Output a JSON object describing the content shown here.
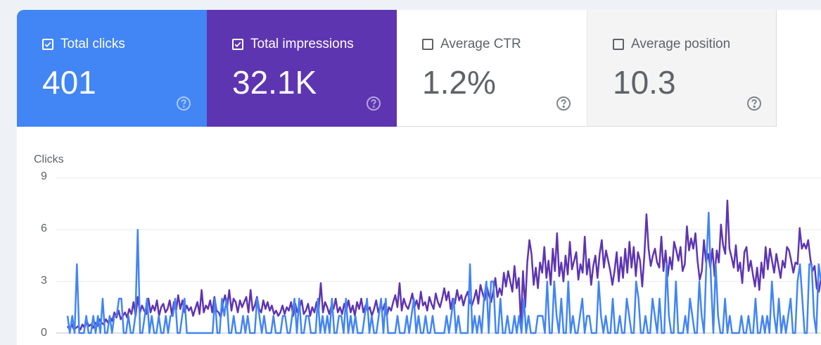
{
  "metrics": [
    {
      "label": "Total clicks",
      "value": "401",
      "checked": true,
      "color": "#4285f4"
    },
    {
      "label": "Total impressions",
      "value": "32.1K",
      "checked": true,
      "color": "#5e35b1"
    },
    {
      "label": "Average CTR",
      "value": "1.2%",
      "checked": false
    },
    {
      "label": "Average position",
      "value": "10.3",
      "checked": false
    }
  ],
  "chart_data": {
    "type": "line",
    "ylabel": "Clicks",
    "yticks": [
      "9",
      "6",
      "3",
      "0"
    ],
    "ylim": [
      0,
      9
    ],
    "grid": true,
    "series": [
      {
        "color": "#4285f4",
        "values": [
          1,
          0,
          1,
          0,
          4,
          0,
          0,
          0,
          1,
          0,
          0,
          1,
          0,
          1,
          0,
          2,
          0,
          0,
          1,
          0,
          1,
          1,
          2,
          2,
          0,
          0,
          1,
          0,
          0,
          1,
          6,
          0,
          0,
          1,
          2,
          0,
          1,
          0,
          0,
          1,
          0,
          0,
          1,
          0,
          1,
          1,
          2,
          0,
          0,
          1,
          2,
          0,
          0,
          0,
          0,
          0,
          0,
          0,
          0,
          0,
          0,
          0,
          0,
          2,
          0,
          0,
          2,
          1,
          2,
          0,
          0,
          1,
          0,
          0,
          0,
          1,
          0,
          1,
          0,
          0,
          0,
          2,
          1,
          0,
          1,
          0,
          0,
          0,
          1,
          0,
          0,
          0,
          1,
          1,
          0,
          0,
          1,
          2,
          0,
          2,
          0,
          0,
          1,
          1,
          0,
          0,
          0,
          2,
          0,
          1,
          0,
          1,
          0,
          2,
          0,
          0,
          1,
          1,
          0,
          2,
          0,
          1,
          0,
          1,
          0,
          0,
          0,
          1,
          2,
          0,
          1,
          0,
          0,
          1,
          2,
          0,
          2,
          0,
          0,
          0,
          0,
          1,
          0,
          0,
          0,
          1,
          0,
          1,
          2,
          0,
          1,
          0,
          0,
          1,
          0,
          0,
          1,
          0,
          0,
          0,
          0,
          0,
          1,
          0,
          1,
          2,
          0,
          1,
          0,
          0,
          0,
          0,
          4,
          0,
          1,
          0,
          1,
          0,
          2,
          3,
          0,
          3,
          3,
          0,
          0,
          2,
          0,
          0,
          1,
          0,
          0,
          1,
          0,
          1,
          0,
          2,
          0,
          1,
          0,
          0,
          0,
          1,
          1,
          1,
          0,
          3,
          0,
          0,
          3,
          1,
          0,
          2,
          0,
          0,
          3,
          0,
          1,
          0,
          0,
          1,
          2,
          0,
          1,
          1,
          0,
          0,
          0,
          3,
          1,
          0,
          1,
          0,
          0,
          2,
          0,
          0,
          1,
          0,
          0,
          2,
          1,
          0,
          0,
          3,
          2,
          0,
          0,
          1,
          0,
          0,
          2,
          1,
          0,
          2,
          0,
          0,
          4,
          1,
          0,
          0,
          3,
          0,
          0,
          0,
          1,
          0,
          2,
          1,
          0,
          0,
          3,
          1,
          0,
          4,
          7,
          3,
          0,
          4,
          1,
          0,
          0,
          2,
          0,
          1,
          0,
          0,
          0,
          0,
          1,
          0,
          0,
          1,
          0,
          0,
          2,
          0,
          0,
          1,
          0,
          1,
          0,
          3,
          1,
          0,
          2,
          0,
          1,
          0,
          1,
          2,
          0,
          0,
          3,
          4,
          2,
          0,
          0,
          4,
          4,
          1,
          0,
          4,
          3
        ],
        "stroke": 2.5
      },
      {
        "color": "#5e35b1",
        "values": [
          0.4,
          0.2,
          0.5,
          0.2,
          0.3,
          0.4,
          0.2,
          0.5,
          0.3,
          0.7,
          0.4,
          0.5,
          0.3,
          0.6,
          0.4,
          0.8,
          0.6,
          0.5,
          0.8,
          0.6,
          0.9,
          0.7,
          1.2,
          0.9,
          1.3,
          0.8,
          1.0,
          1.2,
          0.9,
          1.4,
          1.1,
          1.8,
          1.0,
          2.1,
          1.2,
          1.6,
          1.3,
          1.1,
          2.0,
          1.2,
          1.6,
          1.3,
          1.9,
          1.0,
          1.5,
          1.7,
          1.2,
          1.4,
          1.9,
          1.1,
          1.8,
          1.3,
          2.2,
          1.4,
          1.9,
          1.2,
          1.6,
          1.3,
          1.5,
          1.0,
          1.4,
          1.8,
          1.1,
          2.5,
          1.2,
          1.6,
          1.4,
          1.9,
          1.2,
          2.1,
          1.3,
          1.2,
          0.9,
          1.7,
          2.2,
          1.5,
          2.5,
          1.3,
          2.0,
          1.8,
          1.2,
          1.9,
          1.5,
          1.8,
          2.1,
          1.2,
          2.5,
          1.3,
          1.6,
          2.1,
          1.4,
          1.2,
          1.9,
          1.4,
          1.8,
          1.3,
          1.6,
          1.1,
          1.3,
          1.0,
          1.2,
          1.6,
          1.1,
          1.5,
          1.3,
          1.8,
          1.0,
          1.7,
          1.2,
          1.5,
          1.9,
          1.1,
          1.3,
          1.7,
          1.0,
          1.5,
          1.2,
          1.8,
          1.4,
          2.9,
          1.2,
          1.8,
          1.5,
          1.1,
          1.6,
          1.4,
          2.0,
          1.2,
          1.5,
          1.1,
          1.7,
          1.3,
          1.9,
          1.2,
          1.6,
          1.0,
          1.8,
          1.4,
          2.0,
          1.2,
          1.6,
          1.3,
          1.5,
          1.0,
          1.4,
          1.9,
          1.2,
          1.6,
          1.3,
          1.7,
          1.0,
          1.5,
          1.3,
          1.8,
          2.2,
          1.5,
          2.9,
          1.3,
          2.0,
          1.6,
          1.4,
          1.8,
          2.3,
          1.5,
          1.9,
          1.4,
          2.4,
          1.6,
          1.8,
          1.3,
          2.1,
          1.7,
          1.4,
          2.3,
          1.8,
          1.5,
          2.0,
          2.6,
          1.9,
          2.4,
          1.4,
          2.0,
          1.7,
          2.5,
          1.9,
          2.2,
          1.6,
          2.1,
          2.4,
          1.8,
          1.6,
          2.0,
          2.5,
          1.7,
          2.8,
          2.3,
          1.9,
          2.7,
          2.2,
          1.8,
          2.4,
          3.2,
          2.1,
          2.6,
          2.2,
          3.5,
          2.7,
          3.6,
          3.0,
          2.4,
          3.9,
          2.6,
          3.2,
          0.5,
          3.6,
          1.5,
          4.1,
          5.4,
          4.6,
          2.8,
          3.8,
          2.6,
          4.1,
          3.5,
          5.0,
          3.2,
          4.2,
          2.8,
          4.9,
          3.6,
          5.8,
          3.3,
          4.1,
          3.0,
          4.5,
          3.4,
          5.3,
          3.7,
          4.2,
          4.7,
          3.1,
          4.0,
          3.5,
          5.6,
          3.4,
          4.3,
          2.8,
          3.9,
          4.5,
          3.2,
          4.6,
          5.4,
          3.8,
          4.8,
          4.2,
          3.6,
          2.8,
          3.6,
          4.7,
          3.0,
          4.4,
          3.2,
          4.9,
          3.5,
          5.3,
          3.8,
          5.0,
          3.3,
          4.7,
          4.2,
          2.7,
          4.5,
          6.9,
          4.9,
          3.9,
          4.5,
          4.9,
          4.1,
          3.8,
          5.6,
          3.6,
          4.8,
          3.3,
          4.4,
          3.7,
          5.3,
          4.8,
          4.2,
          5.0,
          3.6,
          4.0,
          6.2,
          4.8,
          5.5,
          4.9,
          5.8,
          4.2,
          3.1,
          3.6,
          5.4,
          4.1,
          4.6,
          3.8,
          4.9,
          3.3,
          4.8,
          4.1,
          6.3,
          5.1,
          4.6,
          7.7,
          4.9,
          4.4,
          3.8,
          5.1,
          3.6,
          4.1,
          2.9,
          4.7,
          5.0,
          3.6,
          4.2,
          3.4,
          2.7,
          3.8,
          2.5,
          4.1,
          3.2,
          5.0,
          3.7,
          4.9,
          4.2,
          3.5,
          4.6,
          3.9,
          3.2,
          4.2,
          3.8,
          5.0,
          4.8,
          4.2,
          3.5,
          4.1,
          4.0,
          6.1,
          4.9,
          5.2,
          4.9,
          5.4,
          4.3,
          3.6,
          3.9,
          2.6,
          2.4,
          3.2
        ],
        "stroke": 2.5
      }
    ]
  }
}
